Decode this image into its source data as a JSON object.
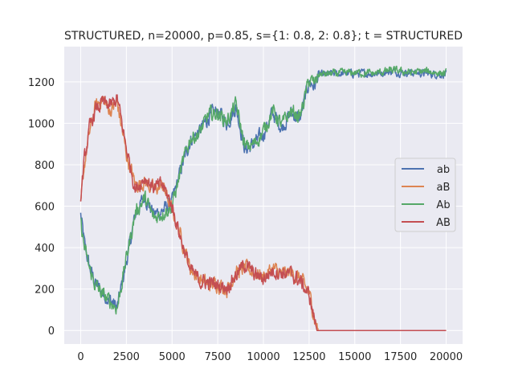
{
  "chart_data": {
    "type": "line",
    "title": "STRUCTURED, n=20000, p=0.85, s={1: 0.8, 2: 0.8}; t = STRUCTURED",
    "xlabel": "",
    "ylabel": "",
    "xlim": [
      -900,
      20900
    ],
    "ylim": [
      -65,
      1370
    ],
    "xticks": [
      0,
      2500,
      5000,
      7500,
      10000,
      12500,
      15000,
      17500,
      20000
    ],
    "yticks": [
      0,
      200,
      400,
      600,
      800,
      1000,
      1200
    ],
    "grid": true,
    "legend_position": "center-right",
    "colors": {
      "background": "#eaeaf2",
      "grid": "#ffffff",
      "ab": "#4c72b0",
      "aB": "#dd8452",
      "Ab": "#55a868",
      "AB": "#c44e52"
    },
    "series": [
      {
        "name": "ab",
        "color": "#4c72b0",
        "x": [
          0,
          200,
          500,
          800,
          1200,
          1600,
          2000,
          2500,
          3000,
          3500,
          4000,
          4500,
          5000,
          5500,
          6000,
          6500,
          7000,
          7500,
          8000,
          8500,
          9000,
          9500,
          10000,
          10500,
          11000,
          11500,
          12000,
          12500,
          12800,
          13000,
          14000,
          15000,
          16000,
          17000,
          18000,
          19000,
          20000
        ],
        "y": [
          560,
          420,
          300,
          230,
          180,
          150,
          110,
          330,
          560,
          650,
          560,
          580,
          620,
          780,
          920,
          960,
          1030,
          1060,
          1000,
          1080,
          870,
          900,
          950,
          1050,
          980,
          1050,
          1020,
          1200,
          1180,
          1230,
          1240,
          1240,
          1240,
          1250,
          1245,
          1240,
          1235
        ]
      },
      {
        "name": "aB",
        "color": "#dd8452",
        "x": [
          0,
          200,
          500,
          800,
          1200,
          1600,
          2000,
          2500,
          3000,
          3500,
          4000,
          4500,
          5000,
          5500,
          6000,
          6500,
          7000,
          7500,
          8000,
          8500,
          9000,
          9500,
          10000,
          10500,
          11000,
          11500,
          12000,
          12500,
          12800,
          13000,
          14000,
          15000,
          16000,
          17000,
          18000,
          19000,
          20000
        ],
        "y": [
          600,
          800,
          960,
          1080,
          1120,
          1060,
          1100,
          850,
          700,
          720,
          680,
          700,
          580,
          450,
          300,
          250,
          220,
          230,
          200,
          280,
          300,
          280,
          260,
          300,
          270,
          280,
          250,
          180,
          60,
          0,
          0,
          0,
          0,
          0,
          0,
          0,
          0
        ]
      },
      {
        "name": "Ab",
        "color": "#55a868",
        "x": [
          0,
          200,
          500,
          800,
          1200,
          1600,
          2000,
          2500,
          3000,
          3500,
          4000,
          4500,
          5000,
          5500,
          6000,
          6500,
          7000,
          7500,
          8000,
          8500,
          9000,
          9500,
          10000,
          10500,
          11000,
          11500,
          12000,
          12500,
          12800,
          13000,
          14000,
          15000,
          16000,
          17000,
          18000,
          19000,
          20000
        ],
        "y": [
          520,
          400,
          290,
          220,
          170,
          140,
          110,
          350,
          570,
          640,
          540,
          570,
          600,
          780,
          930,
          950,
          1040,
          1050,
          1010,
          1090,
          880,
          900,
          960,
          1060,
          990,
          1060,
          1030,
          1210,
          1190,
          1235,
          1240,
          1245,
          1240,
          1255,
          1245,
          1250,
          1240
        ]
      },
      {
        "name": "AB",
        "color": "#c44e52",
        "x": [
          0,
          200,
          500,
          800,
          1200,
          1600,
          2000,
          2500,
          3000,
          3500,
          4000,
          4500,
          5000,
          5500,
          6000,
          6500,
          7000,
          7500,
          8000,
          8500,
          9000,
          9500,
          10000,
          10500,
          11000,
          11500,
          12000,
          12500,
          12800,
          13000,
          14000,
          15000,
          16000,
          17000,
          18000,
          19000,
          20000
        ],
        "y": [
          650,
          820,
          980,
          1060,
          1100,
          1080,
          1120,
          880,
          680,
          740,
          690,
          700,
          600,
          440,
          290,
          240,
          230,
          220,
          210,
          270,
          320,
          270,
          250,
          290,
          280,
          270,
          240,
          170,
          50,
          0,
          0,
          0,
          0,
          0,
          0,
          0,
          0
        ]
      }
    ]
  }
}
